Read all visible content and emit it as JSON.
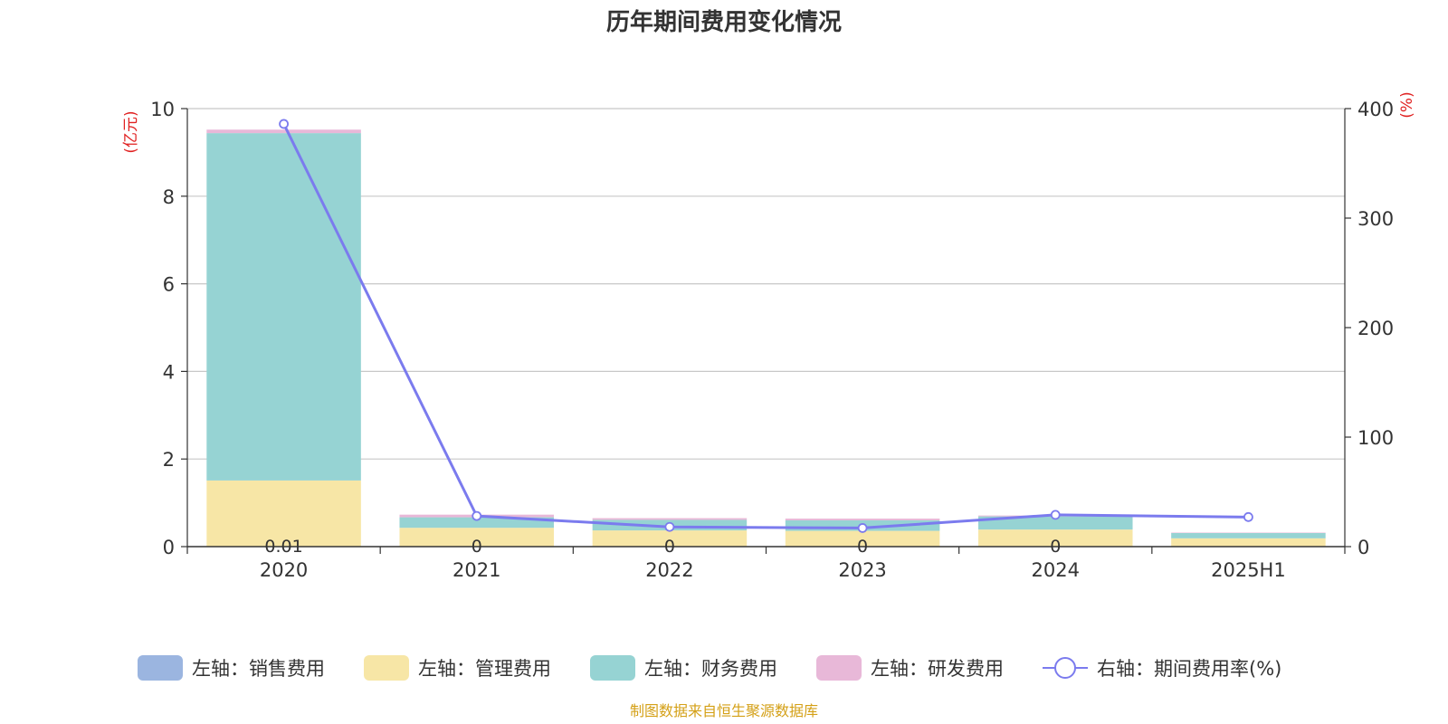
{
  "chart_data": {
    "type": "bar",
    "title": "历年期间费用变化情况",
    "categories": [
      "2020",
      "2021",
      "2022",
      "2023",
      "2024",
      "2025H1"
    ],
    "left_axis": {
      "unit": "(亿元)",
      "ylim": [
        0,
        10
      ],
      "ticks": [
        "0",
        "2",
        "4",
        "6",
        "8",
        "10"
      ]
    },
    "right_axis": {
      "unit": "(%)",
      "ylim": [
        0,
        400
      ],
      "ticks": [
        "0",
        "100",
        "200",
        "300",
        "400"
      ]
    },
    "series": [
      {
        "name": "左轴：销售费用",
        "axis": "left",
        "stack": true,
        "color": "#9bb5e0",
        "values": [
          0.01,
          0,
          0,
          0,
          0,
          0
        ]
      },
      {
        "name": "左轴：管理费用",
        "axis": "left",
        "stack": true,
        "color": "#f7e6a6",
        "values": [
          1.5,
          0.43,
          0.37,
          0.36,
          0.39,
          0.19
        ]
      },
      {
        "name": "左轴：财务费用",
        "axis": "left",
        "stack": true,
        "color": "#96d3d3",
        "values": [
          7.93,
          0.24,
          0.24,
          0.24,
          0.3,
          0.12
        ]
      },
      {
        "name": "左轴：研发费用",
        "axis": "left",
        "stack": true,
        "color": "#e8b8d8",
        "values": [
          0.08,
          0.06,
          0.04,
          0.04,
          0.02,
          0.01
        ]
      },
      {
        "name": "右轴：期间费用率(%)",
        "axis": "right",
        "type": "line",
        "color": "#7b7bee",
        "values": [
          386,
          28,
          18,
          17,
          29,
          27
        ]
      }
    ],
    "bar_labels": [
      "0.01",
      "0",
      "0",
      "0",
      "0",
      ""
    ],
    "grid": true,
    "legend_position": "bottom"
  },
  "source_note": "制图数据来自恒生聚源数据库"
}
